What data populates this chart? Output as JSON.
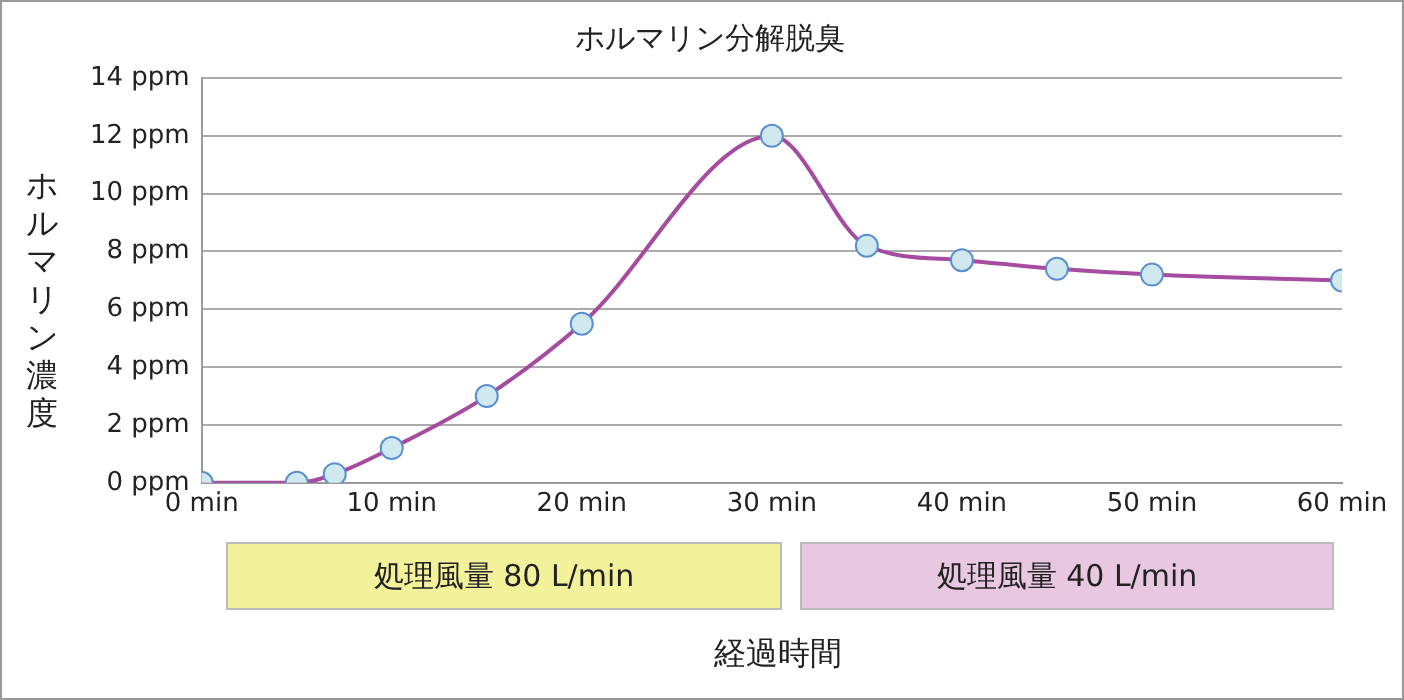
{
  "chart_data": {
    "type": "line",
    "title": "ホルマリン分解脱臭",
    "xlabel": "経過時間",
    "ylabel": "ホルマリン濃度",
    "x": [
      0,
      5,
      7,
      10,
      15,
      20,
      30,
      35,
      40,
      45,
      50,
      60
    ],
    "series": [
      {
        "color": "#a54ca0",
        "values": [
          0,
          0,
          0.3,
          1.2,
          3,
          5.5,
          12,
          8.2,
          7.7,
          7.4,
          7.2,
          7.0
        ]
      }
    ],
    "xlim": [
      0,
      60
    ],
    "xticks": [
      {
        "value": 0,
        "label": "0 min"
      },
      {
        "value": 10,
        "label": "10 min"
      },
      {
        "value": 20,
        "label": "20 min"
      },
      {
        "value": 30,
        "label": "30 min"
      },
      {
        "value": 40,
        "label": "40 min"
      },
      {
        "value": 50,
        "label": "50 min"
      },
      {
        "value": 60,
        "label": "60 min"
      }
    ],
    "ylim": [
      0,
      14
    ],
    "yticks": [
      {
        "value": 0,
        "label": "0 ppm"
      },
      {
        "value": 2,
        "label": "2 ppm"
      },
      {
        "value": 4,
        "label": "4 ppm"
      },
      {
        "value": 6,
        "label": "6 ppm"
      },
      {
        "value": 8,
        "label": "8 ppm"
      },
      {
        "value": 10,
        "label": "10 ppm"
      },
      {
        "value": 12,
        "label": "12 ppm"
      },
      {
        "value": 14,
        "label": "14 ppm"
      }
    ],
    "grid": "y",
    "marker": "circle",
    "line_style": "solid",
    "legend": false,
    "annotations": [
      "処理風量 80 L/min",
      "処理風量 40 L/min"
    ]
  }
}
